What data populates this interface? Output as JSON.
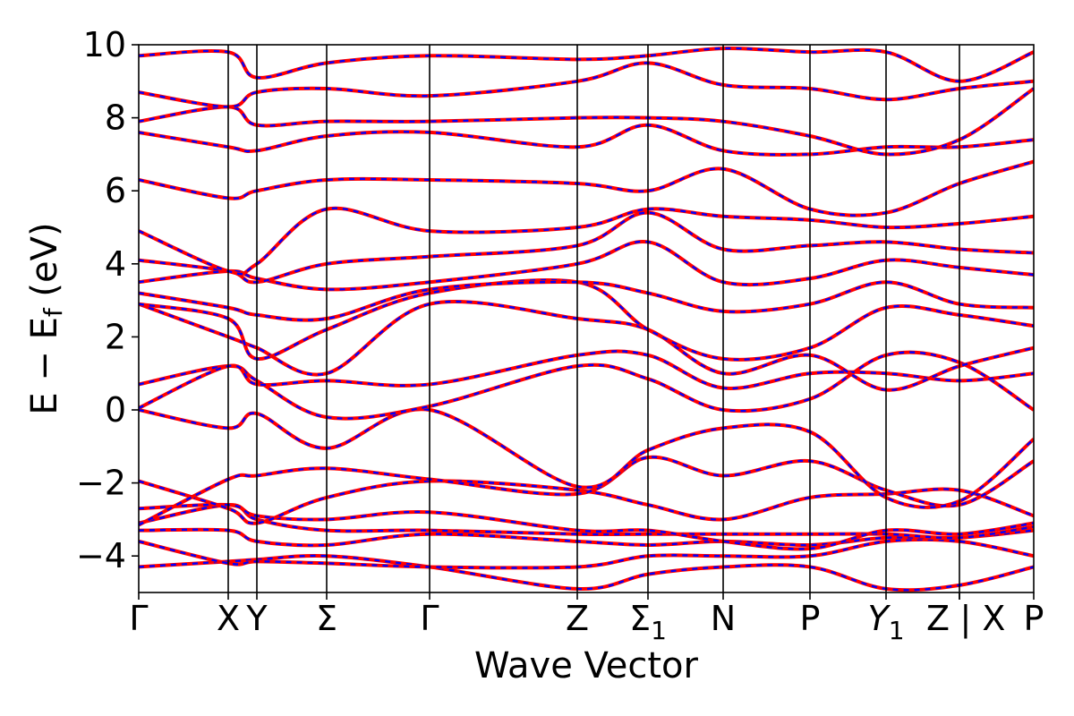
{
  "chart_data": {
    "type": "line",
    "title": "",
    "xlabel": "Wave Vector",
    "ylabel": "E − E_f (eV)",
    "ylabel_parts": {
      "main": "E − E",
      "sub": "f",
      "unit": " (eV)"
    },
    "ylim": [
      -5,
      10
    ],
    "yticks": [
      -4,
      -2,
      0,
      2,
      4,
      6,
      8,
      10
    ],
    "ytick_labels": [
      "−4",
      "−2",
      "0",
      "2",
      "4",
      "6",
      "8",
      "10"
    ],
    "xlim": [
      0,
      1
    ],
    "kpoints": [
      {
        "label": "Γ",
        "x": 0.0
      },
      {
        "label": "X",
        "x": 0.1
      },
      {
        "label": "Y",
        "x": 0.132
      },
      {
        "label": "Σ",
        "x": 0.21
      },
      {
        "label": "Γ",
        "x": 0.325
      },
      {
        "label": "Z",
        "x": 0.49
      },
      {
        "label": "Σ",
        "sub": "1",
        "x": 0.569
      },
      {
        "label": "N",
        "x": 0.653
      },
      {
        "label": "P",
        "x": 0.75
      },
      {
        "label": "Y",
        "sub": "1",
        "italic": true,
        "x": 0.835
      },
      {
        "label": "Z",
        "x": 0.917
      },
      {
        "label": "X",
        "x": 0.917,
        "prefix": "| "
      },
      {
        "label": "P",
        "x": 1.0
      }
    ],
    "series_styles": [
      {
        "color": "#ff0000",
        "style": "solid"
      },
      {
        "color": "#0000ff",
        "style": "dashed"
      }
    ],
    "x": [
      0.0,
      0.1,
      0.132,
      0.21,
      0.325,
      0.49,
      0.569,
      0.653,
      0.75,
      0.835,
      0.917,
      1.0
    ],
    "bands": [
      [
        -4.3,
        -4.15,
        -4.1,
        -4.0,
        -4.3,
        -4.9,
        -4.5,
        -4.3,
        -4.3,
        -4.9,
        -4.8,
        -4.3
      ],
      [
        -3.6,
        -4.2,
        -4.15,
        -4.2,
        -4.3,
        -4.3,
        -4.0,
        -4.0,
        -4.0,
        -3.6,
        -3.6,
        -4.0
      ],
      [
        -3.3,
        -3.3,
        -3.6,
        -3.7,
        -3.4,
        -3.6,
        -3.7,
        -3.6,
        -3.7,
        -3.5,
        -3.5,
        -3.3
      ],
      [
        -3.1,
        -2.6,
        -3.0,
        -3.3,
        -3.3,
        -3.4,
        -3.4,
        -3.4,
        -3.4,
        -3.4,
        -3.5,
        -3.2
      ],
      [
        -2.7,
        -2.6,
        -2.9,
        -3.0,
        -2.8,
        -3.3,
        -3.3,
        -3.6,
        -3.8,
        -3.3,
        -3.4,
        -3.1
      ],
      [
        -1.95,
        -2.7,
        -3.1,
        -2.4,
        -1.95,
        -2.2,
        -2.6,
        -3.0,
        -2.4,
        -2.3,
        -2.2,
        -2.9
      ],
      [
        -3.15,
        -1.9,
        -1.8,
        -1.6,
        -1.9,
        -2.3,
        -1.3,
        -1.8,
        -1.4,
        -2.2,
        -2.6,
        -1.4
      ],
      [
        0.0,
        -0.5,
        -0.1,
        -1.05,
        0.0,
        -2.1,
        -1.1,
        -0.5,
        -0.6,
        -2.4,
        -2.5,
        -0.8
      ],
      [
        0.7,
        1.2,
        0.8,
        -0.2,
        0.1,
        1.2,
        0.85,
        0.0,
        0.3,
        1.5,
        1.3,
        0.0
      ],
      [
        0.05,
        1.2,
        0.7,
        0.8,
        0.7,
        1.5,
        1.5,
        0.6,
        1.0,
        1.0,
        0.8,
        1.0
      ],
      [
        2.9,
        2.0,
        1.7,
        1.0,
        2.9,
        2.5,
        2.2,
        1.0,
        1.5,
        0.55,
        1.2,
        1.7
      ],
      [
        2.9,
        2.5,
        1.4,
        2.2,
        3.2,
        3.5,
        2.2,
        1.4,
        1.7,
        2.8,
        2.6,
        2.3
      ],
      [
        3.2,
        2.8,
        2.6,
        2.5,
        3.3,
        3.5,
        3.2,
        2.7,
        2.9,
        3.5,
        2.9,
        2.8
      ],
      [
        3.5,
        3.8,
        3.6,
        3.3,
        3.5,
        4.0,
        4.6,
        3.5,
        3.6,
        4.1,
        3.9,
        3.7
      ],
      [
        4.1,
        3.8,
        3.5,
        4.0,
        4.2,
        4.5,
        5.4,
        4.4,
        4.5,
        4.6,
        4.4,
        4.3
      ],
      [
        4.9,
        3.8,
        4.0,
        5.5,
        4.9,
        5.0,
        5.5,
        5.3,
        5.2,
        5.0,
        5.1,
        5.3
      ],
      [
        6.3,
        5.8,
        6.0,
        6.3,
        6.3,
        6.2,
        6.0,
        6.6,
        5.5,
        5.4,
        6.2,
        6.8
      ],
      [
        7.6,
        7.2,
        7.1,
        7.5,
        7.6,
        7.2,
        7.8,
        7.1,
        7.0,
        7.2,
        7.2,
        7.4
      ],
      [
        7.9,
        8.3,
        7.8,
        7.9,
        7.9,
        8.0,
        8.0,
        7.9,
        7.5,
        7.0,
        7.4,
        8.8
      ],
      [
        8.7,
        8.3,
        8.7,
        8.8,
        8.6,
        9.0,
        9.5,
        8.9,
        8.8,
        8.5,
        8.8,
        9.0
      ],
      [
        9.7,
        9.8,
        9.1,
        9.5,
        9.7,
        9.6,
        9.7,
        9.9,
        9.8,
        9.8,
        9.0,
        9.8
      ]
    ]
  }
}
